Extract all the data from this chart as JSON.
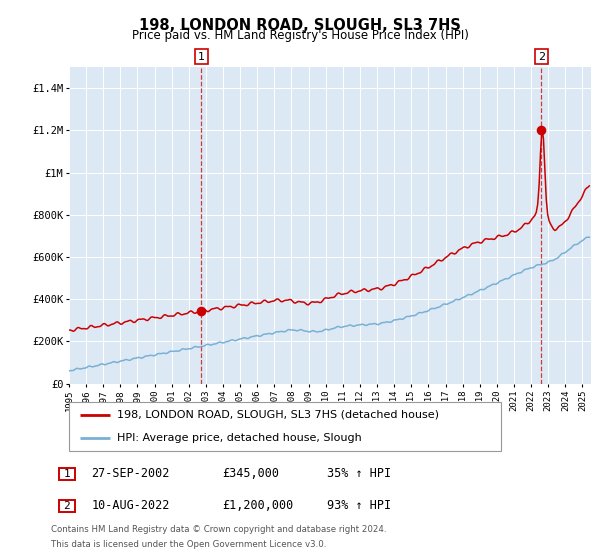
{
  "title": "198, LONDON ROAD, SLOUGH, SL3 7HS",
  "subtitle": "Price paid vs. HM Land Registry's House Price Index (HPI)",
  "red_color": "#cc0000",
  "blue_color": "#7ab0d4",
  "background_color": "#dce9f5",
  "grid_color": "#ffffff",
  "point1_x": 2002.74,
  "point1_y": 345000,
  "point2_x": 2022.6,
  "point2_y": 1200000,
  "legend_label_red": "198, LONDON ROAD, SLOUGH, SL3 7HS (detached house)",
  "legend_label_blue": "HPI: Average price, detached house, Slough",
  "table_row1": [
    "1",
    "27-SEP-2002",
    "£345,000",
    "35% ↑ HPI"
  ],
  "table_row2": [
    "2",
    "10-AUG-2022",
    "£1,200,000",
    "93% ↑ HPI"
  ],
  "footnote1": "Contains HM Land Registry data © Crown copyright and database right 2024.",
  "footnote2": "This data is licensed under the Open Government Licence v3.0.",
  "ylim": [
    0,
    1500000
  ],
  "xlim_start": 1995.0,
  "xlim_end": 2025.5
}
